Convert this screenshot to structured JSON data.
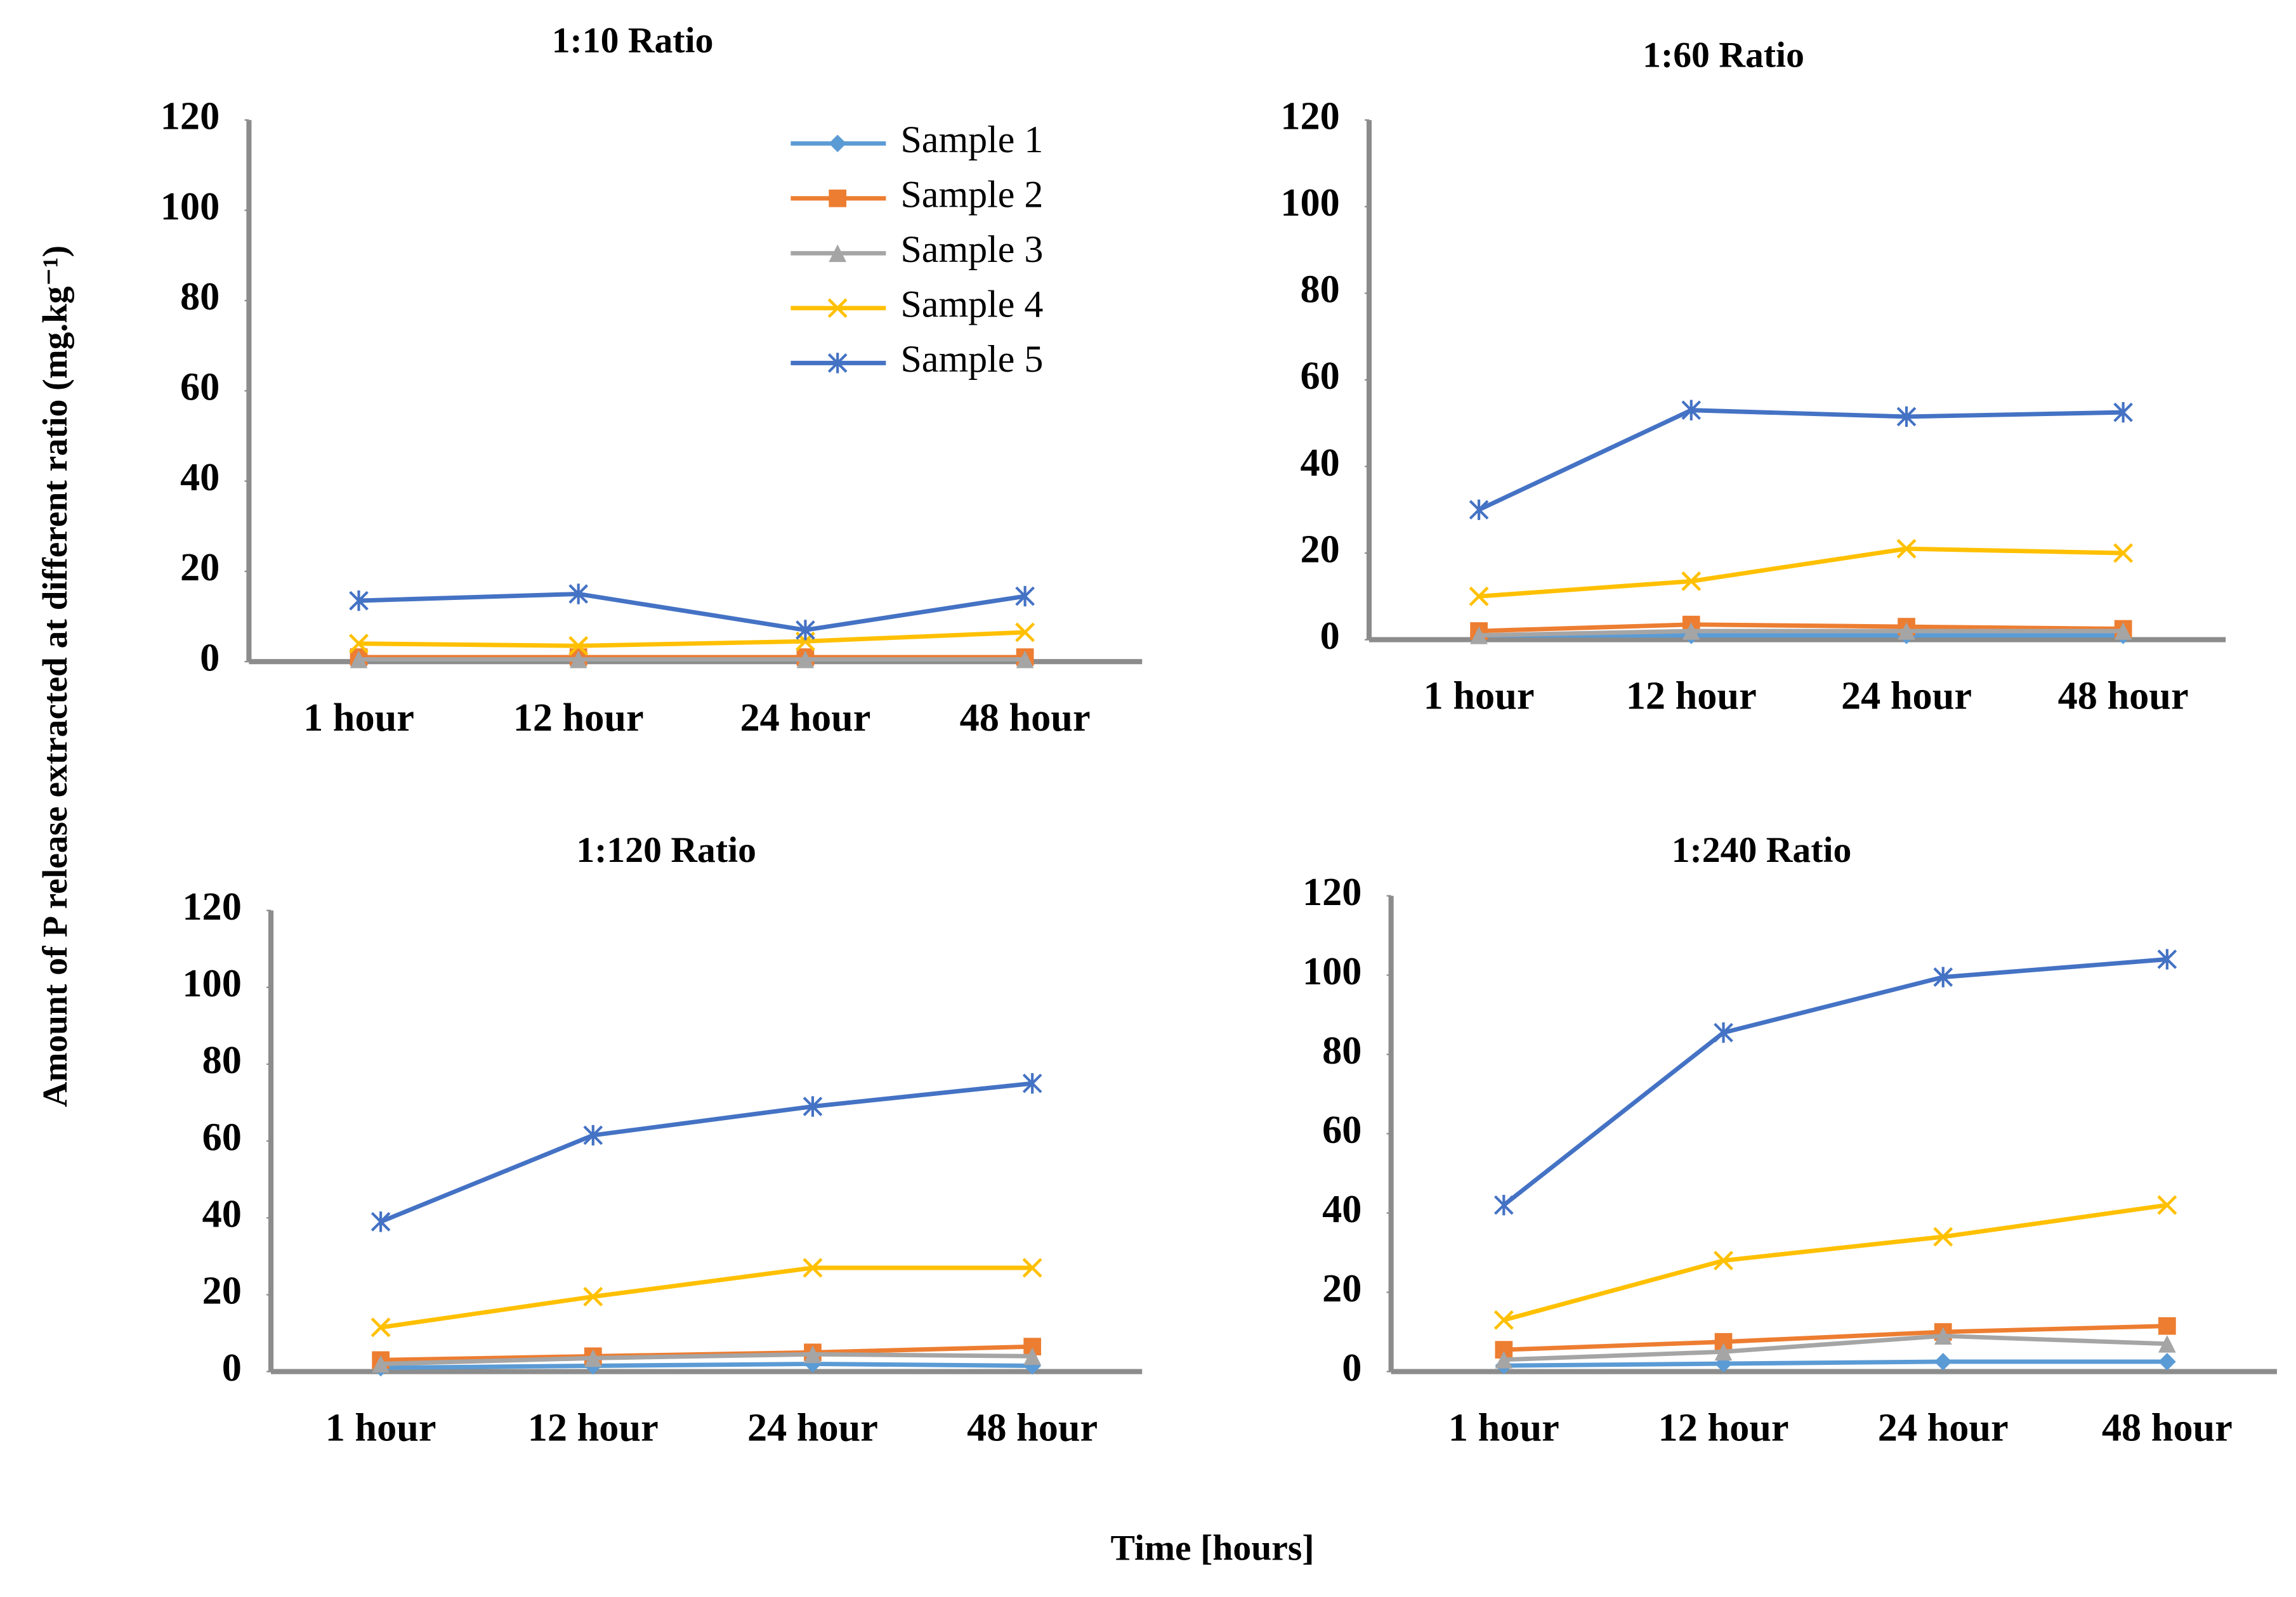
{
  "figure": {
    "ylabel": "Amount of P release extracted at different ratio (mg.kg⁻¹)",
    "xlabel": "Time [hours]"
  },
  "chart_data": [
    {
      "type": "line",
      "title": "1:10 Ratio",
      "legend": "top-right",
      "categories": [
        "1 hour",
        "12 hour",
        "24 hour",
        "48 hour"
      ],
      "ylim": [
        0,
        120
      ],
      "yticks": [
        0,
        20,
        40,
        60,
        80,
        100,
        120
      ],
      "series": [
        {
          "name": "Sample 1",
          "color": "#5b9bd5",
          "marker": "diamond",
          "values": [
            0.5,
            0.5,
            0.5,
            0.5
          ]
        },
        {
          "name": "Sample 2",
          "color": "#ed7d31",
          "marker": "square",
          "values": [
            1,
            1,
            1,
            1
          ]
        },
        {
          "name": "Sample 3",
          "color": "#a5a5a5",
          "marker": "triangle",
          "values": [
            0.5,
            0.5,
            0.5,
            0.5
          ]
        },
        {
          "name": "Sample 4",
          "color": "#ffc000",
          "marker": "x",
          "values": [
            4,
            3.5,
            4.5,
            6.5
          ]
        },
        {
          "name": "Sample 5",
          "color": "#4472c4",
          "marker": "star",
          "values": [
            13.5,
            15,
            7,
            14.5
          ]
        }
      ]
    },
    {
      "type": "line",
      "title": "1:60 Ratio",
      "categories": [
        "1 hour",
        "12 hour",
        "24 hour",
        "48 hour"
      ],
      "ylim": [
        0,
        120
      ],
      "yticks": [
        0,
        20,
        40,
        60,
        80,
        100,
        120
      ],
      "series": [
        {
          "values": [
            1,
            1,
            1,
            1
          ]
        },
        {
          "values": [
            2,
            3.5,
            3,
            2.5
          ]
        },
        {
          "values": [
            1,
            2,
            2,
            2
          ]
        },
        {
          "values": [
            10,
            13.5,
            21,
            20
          ]
        },
        {
          "values": [
            30,
            53,
            51.5,
            52.5
          ]
        }
      ]
    },
    {
      "type": "line",
      "title": "1:120 Ratio",
      "categories": [
        "1 hour",
        "12 hour",
        "24 hour",
        "48 hour"
      ],
      "ylim": [
        0,
        120
      ],
      "yticks": [
        0,
        20,
        40,
        60,
        80,
        100,
        120
      ],
      "series": [
        {
          "values": [
            1,
            1.5,
            2,
            1.5
          ]
        },
        {
          "values": [
            3,
            4,
            5,
            6.5
          ]
        },
        {
          "values": [
            2,
            3.5,
            4.5,
            4
          ]
        },
        {
          "values": [
            11.5,
            19.5,
            27,
            27
          ]
        },
        {
          "values": [
            39,
            61.5,
            69,
            75
          ]
        }
      ]
    },
    {
      "type": "line",
      "title": "1:240 Ratio",
      "categories": [
        "1 hour",
        "12 hour",
        "24 hour",
        "48 hour"
      ],
      "ylim": [
        0,
        120
      ],
      "yticks": [
        0,
        20,
        40,
        60,
        80,
        100,
        120
      ],
      "series": [
        {
          "values": [
            1.5,
            2,
            2.5,
            2.5
          ]
        },
        {
          "values": [
            5.5,
            7.5,
            10,
            11.5
          ]
        },
        {
          "values": [
            3,
            5,
            9,
            7
          ]
        },
        {
          "values": [
            13,
            28,
            34,
            42
          ]
        },
        {
          "values": [
            42,
            85.5,
            99.5,
            104
          ]
        }
      ]
    }
  ]
}
